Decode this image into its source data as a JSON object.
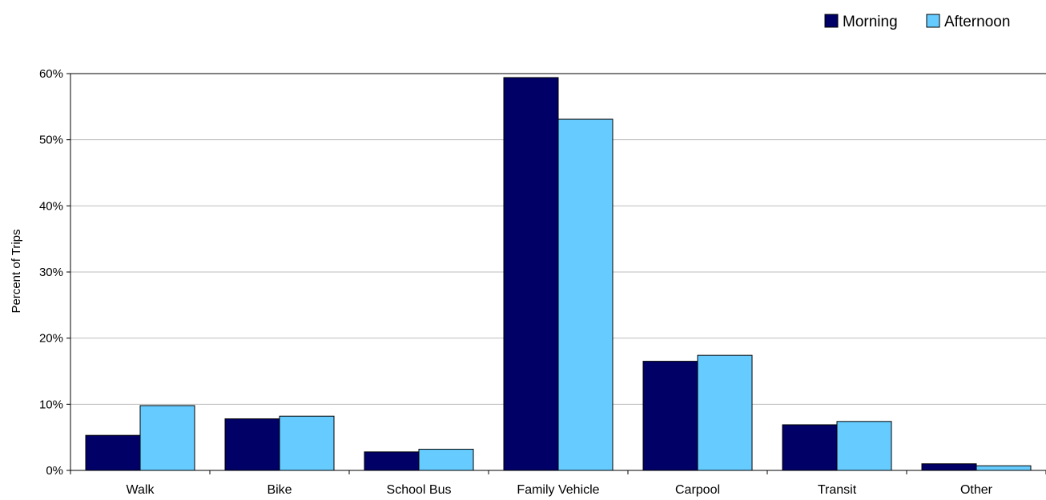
{
  "chart_data": {
    "type": "bar",
    "title": "",
    "xlabel": "",
    "ylabel": "Percent of Trips",
    "ylim": [
      0,
      60
    ],
    "yticks": [
      0,
      10,
      20,
      30,
      40,
      50,
      60
    ],
    "ytick_labels": [
      "0%",
      "10%",
      "20%",
      "30%",
      "40%",
      "50%",
      "60%"
    ],
    "grid": true,
    "legend_position": "top-right",
    "categories": [
      "Walk",
      "Bike",
      "School Bus",
      "Family Vehicle",
      "Carpool",
      "Transit",
      "Other"
    ],
    "series": [
      {
        "name": "Morning",
        "color": "#000066",
        "values": [
          5.3,
          7.8,
          2.8,
          59.4,
          16.5,
          6.9,
          1.0
        ]
      },
      {
        "name": "Afternoon",
        "color": "#66CCFF",
        "values": [
          9.8,
          8.2,
          3.2,
          53.1,
          17.4,
          7.4,
          0.7
        ]
      }
    ]
  }
}
